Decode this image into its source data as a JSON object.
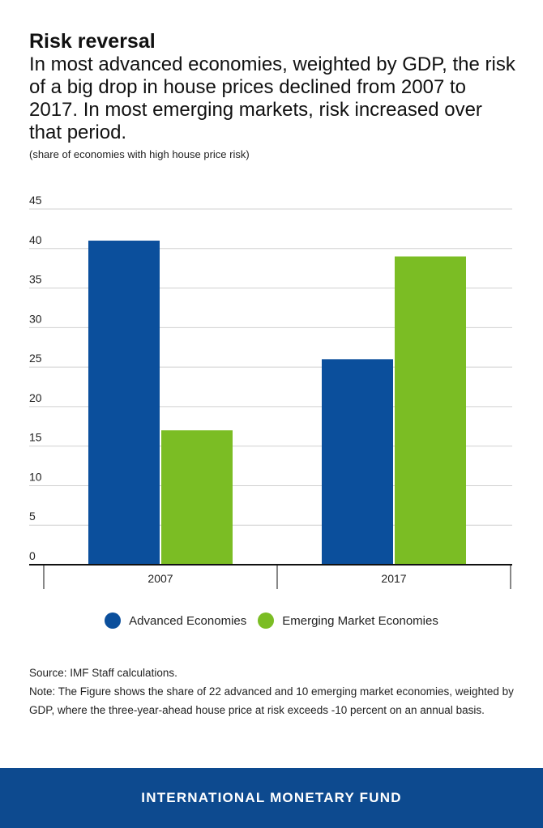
{
  "header": {
    "title": "Risk reversal",
    "subtitle": "In most advanced economies, weighted by GDP, the risk of a big drop in house prices declined from 2007 to 2017. In most emerging markets, risk increased over that period.",
    "units": "(share of economies with high house price risk)"
  },
  "chart_data": {
    "type": "bar",
    "title": "Risk reversal",
    "categories": [
      "2007",
      "2017"
    ],
    "series": [
      {
        "name": "Advanced Economies",
        "values": [
          41,
          26
        ],
        "color": "#0b4f9c"
      },
      {
        "name": "Emerging Market Economies",
        "values": [
          17,
          39
        ],
        "color": "#7bbd24"
      }
    ],
    "ylim": [
      0,
      45
    ],
    "yticks": [
      0,
      5,
      10,
      15,
      20,
      25,
      30,
      35,
      40,
      45
    ],
    "grid": true,
    "legend": "bottom-center",
    "xlabel": "",
    "ylabel": ""
  },
  "legend": {
    "items": [
      {
        "label": "Advanced Economies",
        "color": "#0b4f9c"
      },
      {
        "label": "Emerging Market Economies",
        "color": "#7bbd24"
      }
    ]
  },
  "notes": {
    "source": "Source: IMF Staff calculations.",
    "note": "Note: The Figure shows the share of 22 advanced and 10 emerging market economies, weighted by GDP, where the three-year-ahead house price at risk exceeds -10 percent on an annual basis."
  },
  "footer": {
    "label": "INTERNATIONAL MONETARY FUND",
    "color": "#0d4a8f"
  }
}
